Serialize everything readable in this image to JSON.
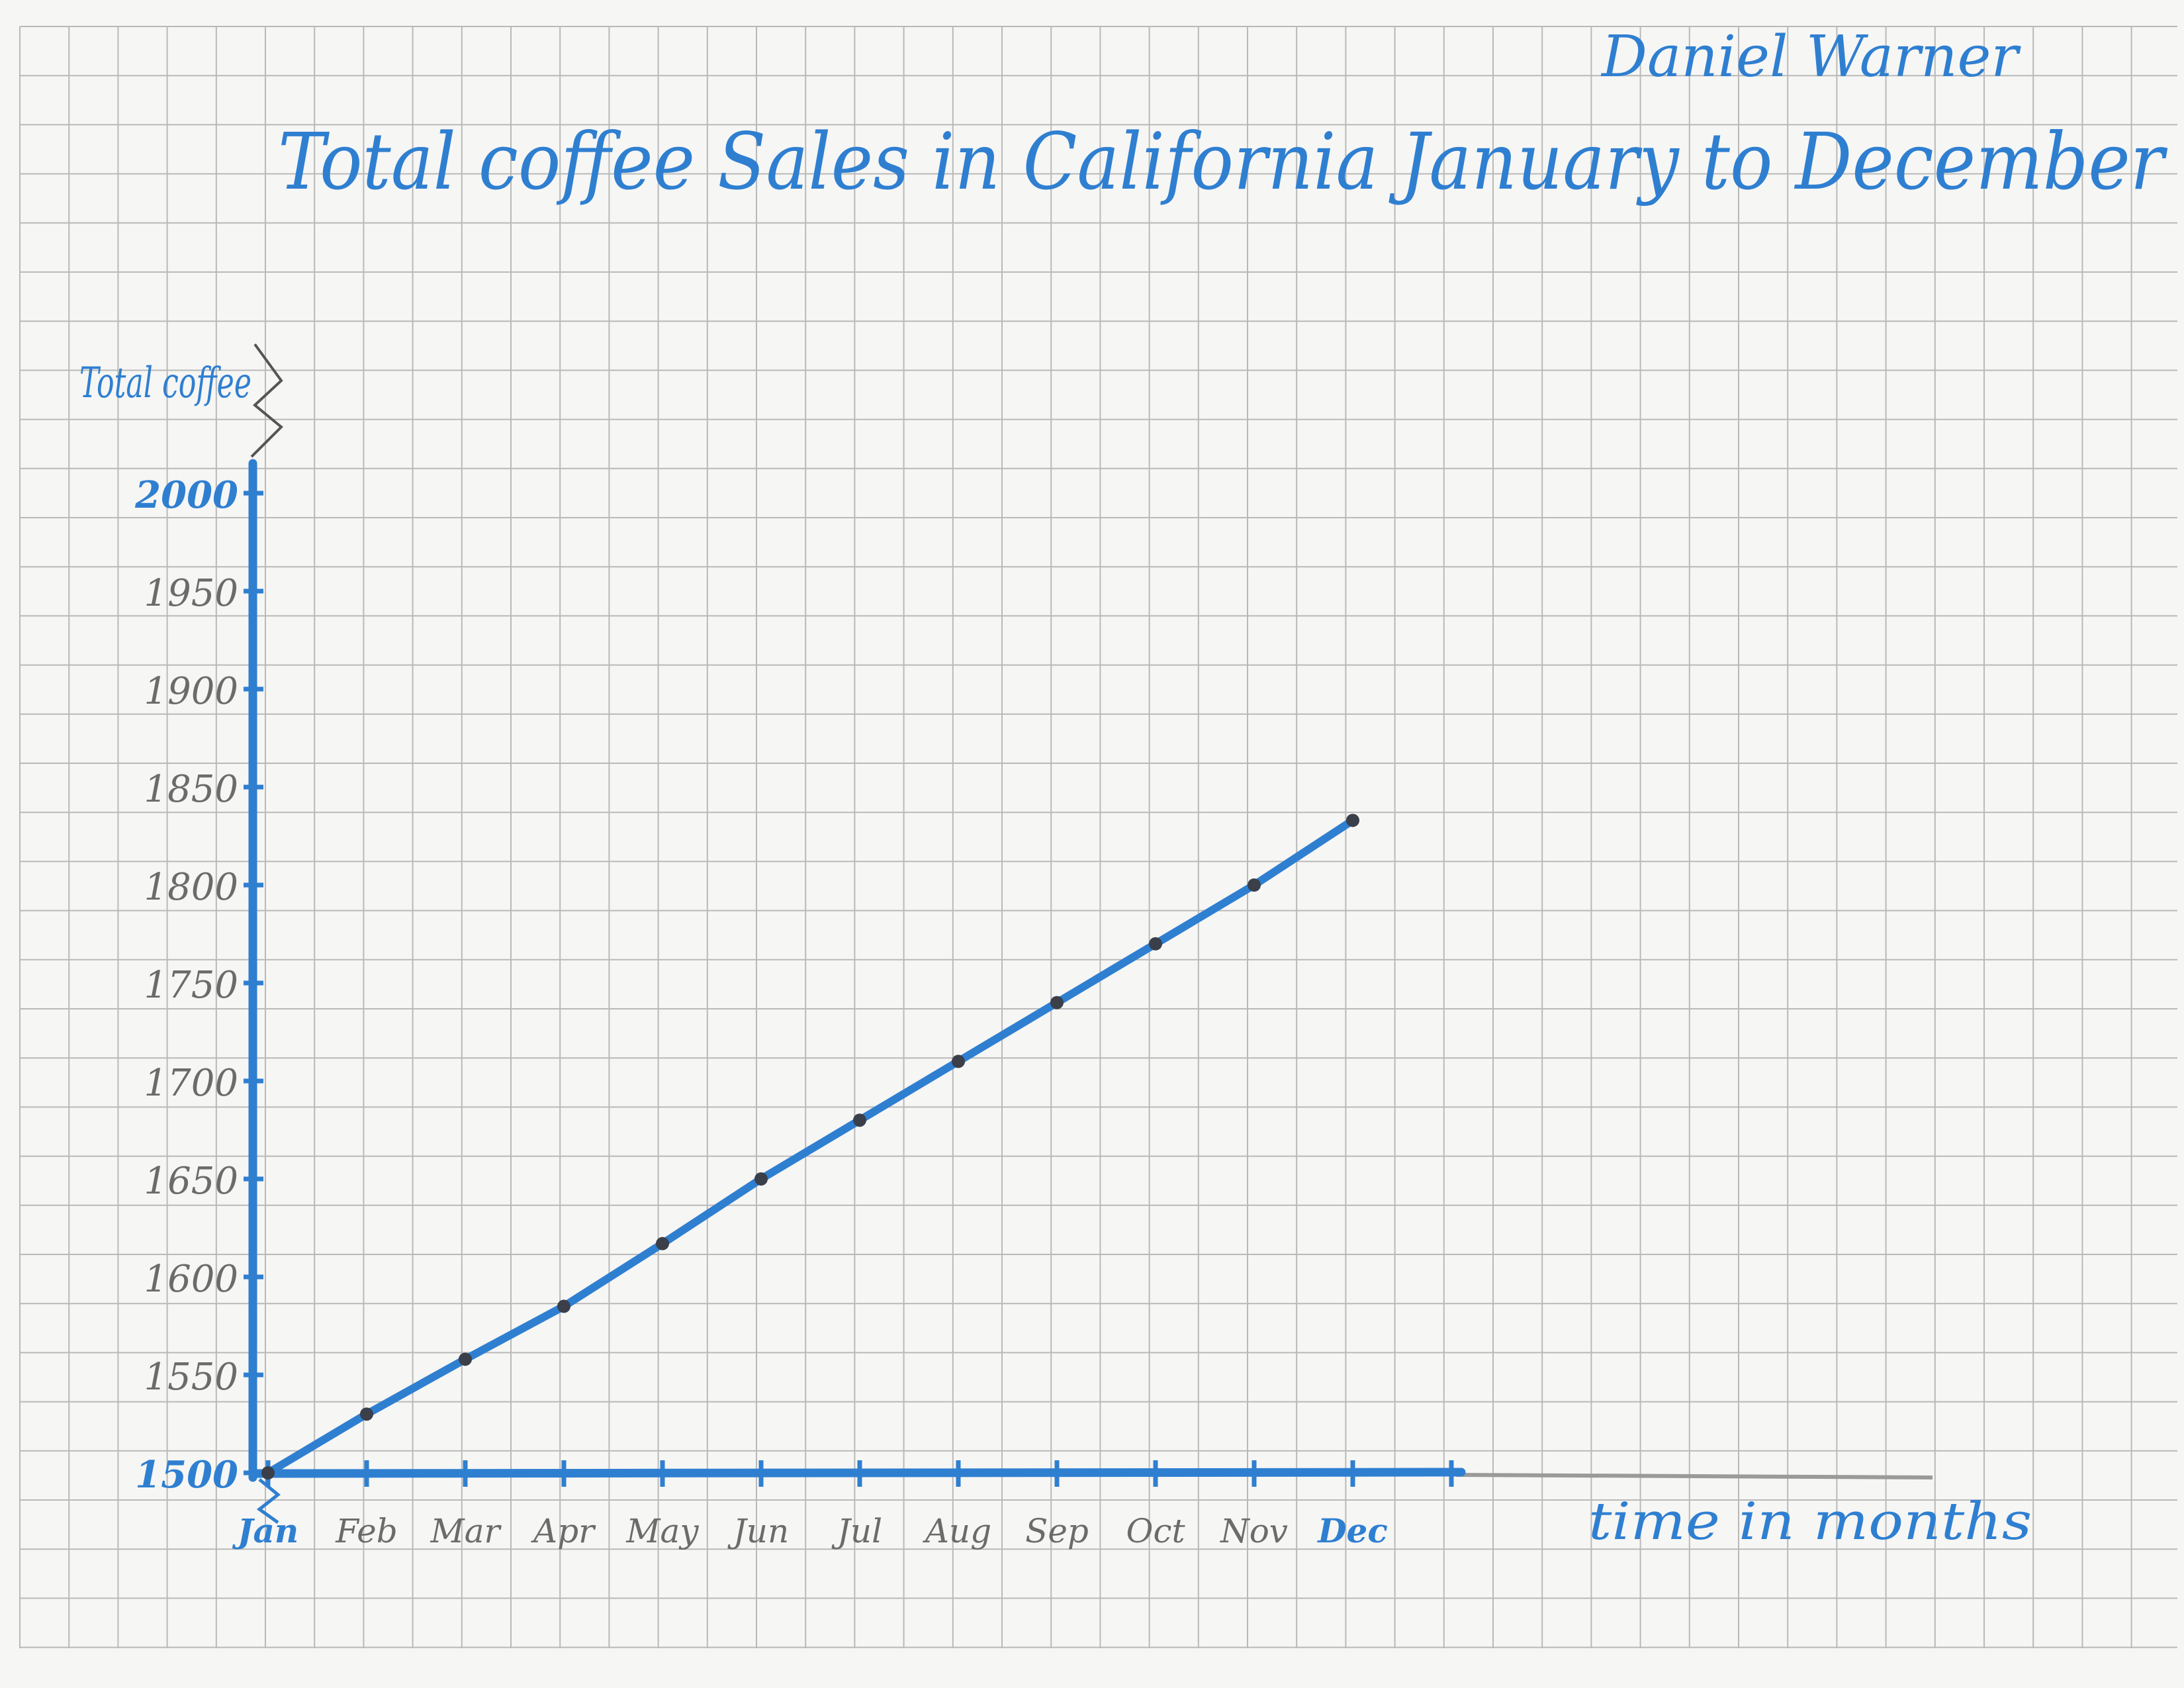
{
  "author": "Daniel Warner",
  "colors": {
    "paper": "#f6f6f4",
    "grid": "#b9b9b9",
    "ink_blue": "#2f7fd1",
    "pencil": "#6b6b6b",
    "point": "#3a3f4a"
  },
  "chart_data": {
    "type": "line",
    "title": "Total coffee Sales in California January to December",
    "ylabel": "Total coffee",
    "xlabel": "time in months",
    "categories": [
      "Jan",
      "Feb",
      "Mar",
      "Apr",
      "May",
      "Jun",
      "Jul",
      "Aug",
      "Sep",
      "Oct",
      "Nov",
      "Dec"
    ],
    "y_ticks": [
      "1500",
      "1550",
      "1600",
      "1650",
      "1700",
      "1750",
      "1800",
      "1850",
      "1900",
      "1950",
      "2000"
    ],
    "ylim": [
      1500,
      2000
    ],
    "grid": true,
    "legend": "none",
    "series": [
      {
        "values": [
          1500,
          1530,
          1558,
          1585,
          1617,
          1650,
          1680,
          1710,
          1740,
          1770,
          1800,
          1833
        ]
      }
    ]
  }
}
